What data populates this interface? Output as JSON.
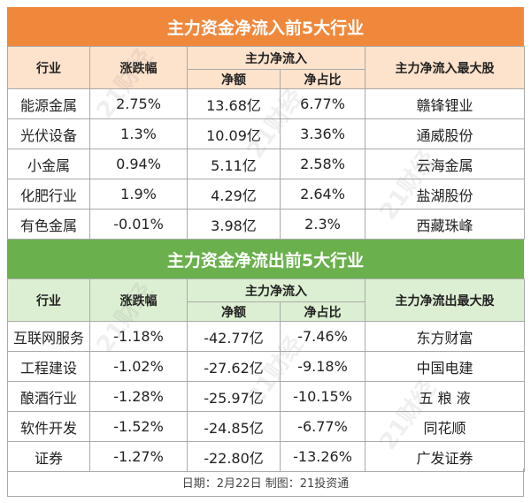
{
  "inflow": {
    "title": "主力资金净流入前5大行业",
    "headers": {
      "industry": "行业",
      "change": "涨跌幅",
      "group": "主力净流入",
      "net": "净额",
      "ratio": "净占比",
      "top_stock": "主力净流入最大股"
    },
    "rows": [
      {
        "industry": "能源金属",
        "change": "2.75%",
        "net": "13.68亿",
        "ratio": "6.77%",
        "stock": "赣锋锂业"
      },
      {
        "industry": "光伏设备",
        "change": "1.3%",
        "net": "10.09亿",
        "ratio": "3.36%",
        "stock": "通威股份"
      },
      {
        "industry": "小金属",
        "change": "0.94%",
        "net": "5.11亿",
        "ratio": "2.58%",
        "stock": "云海金属"
      },
      {
        "industry": "化肥行业",
        "change": "1.9%",
        "net": "4.29亿",
        "ratio": "2.64%",
        "stock": "盐湖股份"
      },
      {
        "industry": "有色金属",
        "change": "-0.01%",
        "net": "3.98亿",
        "ratio": "2.3%",
        "stock": "西藏珠峰"
      }
    ]
  },
  "outflow": {
    "title": "主力资金净流出前5大行业",
    "headers": {
      "industry": "行业",
      "change": "涨跌幅",
      "group": "主力净流入",
      "net": "净额",
      "ratio": "净占比",
      "top_stock": "主力净流出最大股"
    },
    "rows": [
      {
        "industry": "互联网服务",
        "change": "-1.18%",
        "net": "-42.77亿",
        "ratio": "-7.46%",
        "stock": "东方财富"
      },
      {
        "industry": "工程建设",
        "change": "-1.02%",
        "net": "-27.62亿",
        "ratio": "-9.18%",
        "stock": "中国电建"
      },
      {
        "industry": "酿酒行业",
        "change": "-1.28%",
        "net": "-25.97亿",
        "ratio": "-10.15%",
        "stock": "五 粮 液"
      },
      {
        "industry": "软件开发",
        "change": "-1.52%",
        "net": "-24.85亿",
        "ratio": "-6.77%",
        "stock": "同花顺"
      },
      {
        "industry": "证券",
        "change": "-1.27%",
        "net": "-22.80亿",
        "ratio": "-13.26%",
        "stock": "广发证券"
      }
    ]
  },
  "footer": "日期：2月22日 制图：21投资通",
  "watermark": "21财经",
  "colors": {
    "inflow_accent": "#f0883c",
    "outflow_accent": "#6ab04c"
  }
}
